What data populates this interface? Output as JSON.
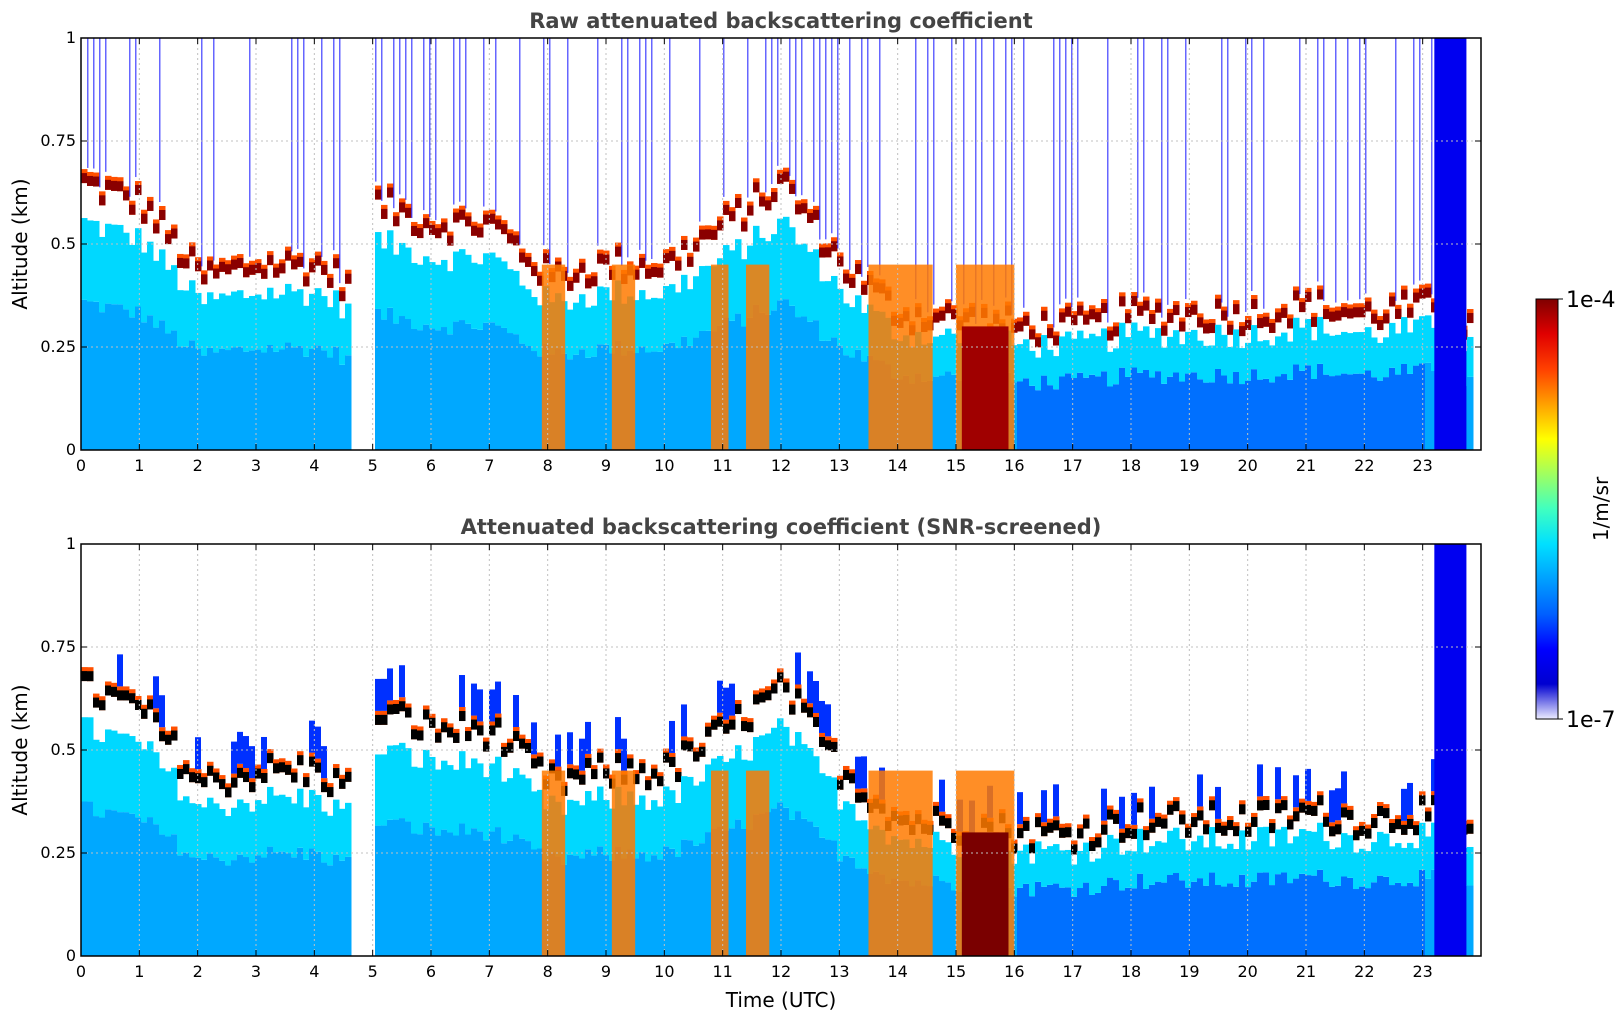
{
  "chart_data": [
    {
      "type": "heatmap",
      "title": "Raw attenuated backscattering coefficient",
      "xlabel": "",
      "ylabel": "Altitude (km)",
      "xlim": [
        0,
        24
      ],
      "ylim": [
        0,
        1
      ],
      "x_ticks": [
        "0",
        "1",
        "2",
        "3",
        "4",
        "5",
        "6",
        "7",
        "8",
        "9",
        "10",
        "11",
        "12",
        "13",
        "14",
        "15",
        "16",
        "17",
        "18",
        "19",
        "20",
        "21",
        "22",
        "23"
      ],
      "y_ticks": [
        "0",
        "0.25",
        "0.5",
        "0.75",
        "1"
      ],
      "grid": true,
      "screened": false,
      "layer_top_km": [
        [
          0,
          0.65
        ],
        [
          1,
          0.6
        ],
        [
          2,
          0.42
        ],
        [
          3,
          0.45
        ],
        [
          4,
          0.45
        ],
        [
          4.6,
          0.4
        ],
        [
          5,
          0.6
        ],
        [
          6,
          0.55
        ],
        [
          7,
          0.55
        ],
        [
          8,
          0.42
        ],
        [
          9,
          0.45
        ],
        [
          10,
          0.45
        ],
        [
          11,
          0.55
        ],
        [
          12,
          0.65
        ],
        [
          13,
          0.45
        ],
        [
          14,
          0.33
        ],
        [
          15,
          0.32
        ],
        [
          16,
          0.3
        ],
        [
          17,
          0.3
        ],
        [
          18,
          0.33
        ],
        [
          19,
          0.33
        ],
        [
          20,
          0.33
        ],
        [
          21,
          0.35
        ],
        [
          22,
          0.33
        ],
        [
          23,
          0.35
        ],
        [
          23.8,
          0.3
        ]
      ]
    },
    {
      "type": "heatmap",
      "title": "Attenuated backscattering coefficient (SNR-screened)",
      "xlabel": "Time (UTC)",
      "ylabel": "Altitude (km)",
      "xlim": [
        0,
        24
      ],
      "ylim": [
        0,
        1
      ],
      "x_ticks": [
        "0",
        "1",
        "2",
        "3",
        "4",
        "5",
        "6",
        "7",
        "8",
        "9",
        "10",
        "11",
        "12",
        "13",
        "14",
        "15",
        "16",
        "17",
        "18",
        "19",
        "20",
        "21",
        "22",
        "23"
      ],
      "y_ticks": [
        "0",
        "0.25",
        "0.5",
        "0.75",
        "1"
      ],
      "grid": true,
      "screened": true,
      "layer_top_km": [
        [
          0,
          0.65
        ],
        [
          1,
          0.6
        ],
        [
          2,
          0.42
        ],
        [
          3,
          0.45
        ],
        [
          4,
          0.45
        ],
        [
          4.6,
          0.4
        ],
        [
          5,
          0.6
        ],
        [
          6,
          0.55
        ],
        [
          7,
          0.55
        ],
        [
          8,
          0.42
        ],
        [
          9,
          0.45
        ],
        [
          10,
          0.45
        ],
        [
          11,
          0.55
        ],
        [
          12,
          0.65
        ],
        [
          13,
          0.45
        ],
        [
          14,
          0.33
        ],
        [
          15,
          0.32
        ],
        [
          16,
          0.3
        ],
        [
          17,
          0.3
        ],
        [
          18,
          0.33
        ],
        [
          19,
          0.33
        ],
        [
          20,
          0.33
        ],
        [
          21,
          0.35
        ],
        [
          22,
          0.33
        ],
        [
          23,
          0.35
        ],
        [
          23.8,
          0.3
        ]
      ]
    }
  ],
  "colorbar": {
    "label": "1/m/sr",
    "max_label": "1e-4",
    "min_label": "1e-7",
    "colors": [
      "#ececff",
      "#0000d0",
      "#0000ff",
      "#0060ff",
      "#00a0ff",
      "#00e0ff",
      "#40ffc0",
      "#a0ff60",
      "#ffff00",
      "#ffa000",
      "#ff4000",
      "#e00000",
      "#800000"
    ]
  }
}
